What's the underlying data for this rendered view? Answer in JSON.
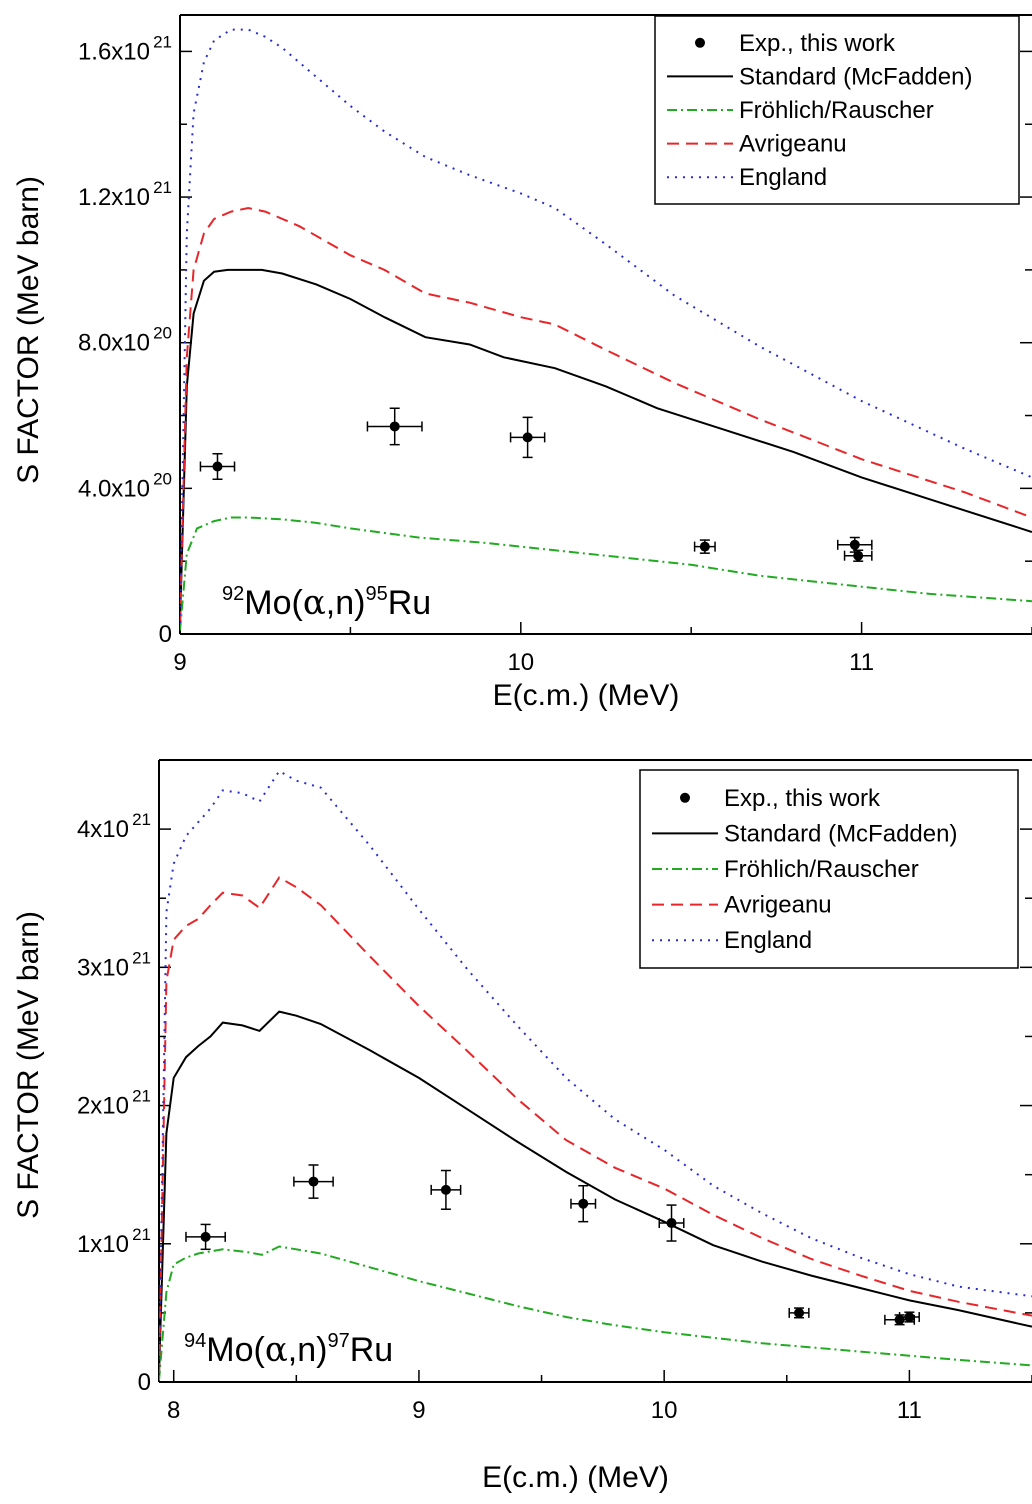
{
  "chart_data": [
    {
      "type": "line",
      "reaction": {
        "a_mass": "92",
        "target": "Mo(",
        "alpha": "α",
        "mid": ",n)",
        "p_mass": "95",
        "product": "Ru"
      },
      "xlabel": "E(c.m.) (MeV)",
      "ylabel": "S FACTOR (MeV barn)",
      "xlim": [
        9.0,
        11.5
      ],
      "ylim": [
        0,
        1.7e+21
      ],
      "x_ticks": [
        {
          "v": 9,
          "label": "9"
        },
        {
          "v": 10,
          "label": "10"
        },
        {
          "v": 11,
          "label": "11"
        }
      ],
      "y_ticks": [
        {
          "v": 0,
          "base": "0",
          "exp": ""
        },
        {
          "v": 4e+20,
          "base": "4.0x10",
          "exp": "20"
        },
        {
          "v": 8e+20,
          "base": "8.0x10",
          "exp": "20"
        },
        {
          "v": 1.2e+21,
          "base": "1.2x10",
          "exp": "21"
        },
        {
          "v": 1.6e+21,
          "base": "1.6x10",
          "exp": "21"
        }
      ],
      "legend": [
        "Exp., this work",
        "Standard (McFadden)",
        "Fröhlich/Rauscher",
        "Avrigeanu",
        "England"
      ],
      "legend_position": "top-right",
      "points": [
        {
          "x": 9.11,
          "y": 4.6e+20,
          "xerr": 0.05,
          "yerr": 3.5e+19
        },
        {
          "x": 9.63,
          "y": 5.7e+20,
          "xerr": 0.08,
          "yerr": 5e+19
        },
        {
          "x": 10.02,
          "y": 5.4e+20,
          "xerr": 0.05,
          "yerr": 5.5e+19
        },
        {
          "x": 10.54,
          "y": 2.4e+20,
          "xerr": 0.03,
          "yerr": 1.8e+19
        },
        {
          "x": 10.98,
          "y": 2.45e+20,
          "xerr": 0.05,
          "yerr": 2e+19
        },
        {
          "x": 10.99,
          "y": 2.15e+20,
          "xerr": 0.04,
          "yerr": 1.5e+19
        }
      ],
      "series": [
        {
          "style": "standard",
          "color": "#000000",
          "dash": "",
          "x": [
            9.0,
            9.02,
            9.04,
            9.07,
            9.1,
            9.14,
            9.19,
            9.24,
            9.3,
            9.4,
            9.5,
            9.6,
            9.72,
            9.85,
            9.95,
            10.1,
            10.25,
            10.4,
            10.6,
            10.8,
            11.0,
            11.2,
            11.5
          ],
          "y": [
            3e+19,
            6.8e+20,
            8.8e+20,
            9.7e+20,
            9.95e+20,
            1e+21,
            1e+21,
            1e+21,
            9.9e+20,
            9.6e+20,
            9.2e+20,
            8.7e+20,
            8.15e+20,
            7.95e+20,
            7.6e+20,
            7.3e+20,
            6.8e+20,
            6.2e+20,
            5.6e+20,
            5e+20,
            4.3e+20,
            3.7e+20,
            2.8e+20
          ]
        },
        {
          "style": "frohlich",
          "color": "#22aa22",
          "dash": "10 4 2 4",
          "x": [
            9.0,
            9.02,
            9.05,
            9.1,
            9.15,
            9.2,
            9.3,
            9.4,
            9.5,
            9.7,
            9.9,
            10.1,
            10.3,
            10.5,
            10.7,
            11.0,
            11.2,
            11.5
          ],
          "y": [
            1e+19,
            2.2e+20,
            2.9e+20,
            3.1e+20,
            3.2e+20,
            3.2e+20,
            3.15e+20,
            3.05e+20,
            2.9e+20,
            2.65e+20,
            2.5e+20,
            2.3e+20,
            2.1e+20,
            1.9e+20,
            1.6e+20,
            1.3e+20,
            1.1e+20,
            9e+19
          ]
        },
        {
          "style": "avrigeanu",
          "color": "#e8262a",
          "dash": "12 7",
          "x": [
            9.0,
            9.02,
            9.04,
            9.07,
            9.1,
            9.15,
            9.2,
            9.25,
            9.35,
            9.5,
            9.6,
            9.72,
            9.85,
            10.0,
            10.1,
            10.25,
            10.45,
            10.7,
            11.0,
            11.3,
            11.5
          ],
          "y": [
            3e+19,
            7.6e+20,
            1e+21,
            1.1e+21,
            1.14e+21,
            1.16e+21,
            1.17e+21,
            1.16e+21,
            1.12e+21,
            1.04e+21,
            1e+21,
            9.35e+20,
            9.1e+20,
            8.7e+20,
            8.5e+20,
            7.8e+20,
            6.9e+20,
            5.9e+20,
            4.8e+20,
            3.9e+20,
            3.2e+20
          ]
        },
        {
          "style": "england",
          "color": "#2b2bd6",
          "dash": "2 6",
          "x": [
            9.0,
            9.02,
            9.04,
            9.07,
            9.1,
            9.15,
            9.2,
            9.25,
            9.3,
            9.4,
            9.5,
            9.6,
            9.72,
            9.85,
            10.0,
            10.1,
            10.25,
            10.45,
            10.7,
            11.0,
            11.3,
            11.5
          ],
          "y": [
            3e+19,
            1.1e+21,
            1.43e+21,
            1.57e+21,
            1.63e+21,
            1.66e+21,
            1.66e+21,
            1.64e+21,
            1.61e+21,
            1.53e+21,
            1.45e+21,
            1.38e+21,
            1.31e+21,
            1.26e+21,
            1.21e+21,
            1.17e+21,
            1.07e+21,
            9.3e+20,
            7.9e+20,
            6.4e+20,
            5.1e+20,
            4.3e+20
          ]
        }
      ]
    },
    {
      "type": "line",
      "reaction": {
        "a_mass": "94",
        "target": "Mo(",
        "alpha": "α",
        "mid": ",n)",
        "p_mass": "97",
        "product": "Ru"
      },
      "xlabel": "E(c.m.) (MeV)",
      "ylabel": "S FACTOR (MeV barn)",
      "xlim": [
        7.94,
        11.5
      ],
      "ylim": [
        0,
        4.5e+21
      ],
      "x_ticks": [
        {
          "v": 8,
          "label": "8"
        },
        {
          "v": 9,
          "label": "9"
        },
        {
          "v": 10,
          "label": "10"
        },
        {
          "v": 11,
          "label": "11"
        }
      ],
      "y_ticks": [
        {
          "v": 0,
          "base": "0",
          "exp": ""
        },
        {
          "v": 1e+21,
          "base": "1x10",
          "exp": "21"
        },
        {
          "v": 2e+21,
          "base": "2x10",
          "exp": "21"
        },
        {
          "v": 3e+21,
          "base": "3x10",
          "exp": "21"
        },
        {
          "v": 4e+21,
          "base": "4x10",
          "exp": "21"
        }
      ],
      "legend": [
        "Exp., this work",
        "Standard (McFadden)",
        "Fröhlich/Rauscher",
        "Avrigeanu",
        "England"
      ],
      "legend_position": "top-right",
      "points": [
        {
          "x": 8.13,
          "y": 1.05e+21,
          "xerr": 0.08,
          "yerr": 9e+19
        },
        {
          "x": 8.57,
          "y": 1.45e+21,
          "xerr": 0.08,
          "yerr": 1.2e+20
        },
        {
          "x": 9.11,
          "y": 1.39e+21,
          "xerr": 0.06,
          "yerr": 1.4e+20
        },
        {
          "x": 9.67,
          "y": 1.29e+21,
          "xerr": 0.05,
          "yerr": 1.3e+20
        },
        {
          "x": 10.03,
          "y": 1.15e+21,
          "xerr": 0.05,
          "yerr": 1.3e+20
        },
        {
          "x": 10.55,
          "y": 5e+20,
          "xerr": 0.04,
          "yerr": 3.5e+19
        },
        {
          "x": 10.96,
          "y": 4.5e+20,
          "xerr": 0.06,
          "yerr": 3.5e+19
        },
        {
          "x": 11.0,
          "y": 4.7e+20,
          "xerr": 0.04,
          "yerr": 3.5e+19
        }
      ],
      "series": [
        {
          "style": "standard",
          "color": "#000000",
          "dash": "",
          "x": [
            7.94,
            7.97,
            8.0,
            8.05,
            8.1,
            8.15,
            8.2,
            8.28,
            8.35,
            8.43,
            8.5,
            8.6,
            8.8,
            9.0,
            9.2,
            9.4,
            9.6,
            9.8,
            10.0,
            10.2,
            10.4,
            10.6,
            10.8,
            11.0,
            11.2,
            11.5
          ],
          "y": [
            5e+19,
            1.8e+21,
            2.2e+21,
            2.35e+21,
            2.43e+21,
            2.5e+21,
            2.6e+21,
            2.58e+21,
            2.54e+21,
            2.68e+21,
            2.65e+21,
            2.59e+21,
            2.4e+21,
            2.2e+21,
            1.97e+21,
            1.74e+21,
            1.52e+21,
            1.32e+21,
            1.16e+21,
            9.9e+20,
            8.7e+20,
            7.7e+20,
            6.8e+20,
            5.9e+20,
            5.2e+20,
            4e+20
          ]
        },
        {
          "style": "frohlich",
          "color": "#22aa22",
          "dash": "10 4 2 4",
          "x": [
            7.94,
            7.97,
            8.0,
            8.05,
            8.1,
            8.2,
            8.3,
            8.36,
            8.43,
            8.5,
            8.6,
            8.8,
            9.0,
            9.2,
            9.4,
            9.6,
            9.8,
            10.0,
            10.2,
            10.4,
            10.6,
            10.8,
            11.0,
            11.2,
            11.5
          ],
          "y": [
            1e+19,
            6.5e+20,
            8.5e+20,
            9e+20,
            9.3e+20,
            9.6e+20,
            9.4e+20,
            9.2e+20,
            9.8e+20,
            9.6e+20,
            9.3e+20,
            8.3e+20,
            7.3e+20,
            6.4e+20,
            5.5e+20,
            4.7e+20,
            4.1e+20,
            3.6e+20,
            3.2e+20,
            2.8e+20,
            2.5e+20,
            2.2e+20,
            1.9e+20,
            1.6e+20,
            1.2e+20
          ]
        },
        {
          "style": "avrigeanu",
          "color": "#e8262a",
          "dash": "12 7",
          "x": [
            7.94,
            7.97,
            8.0,
            8.05,
            8.1,
            8.15,
            8.2,
            8.28,
            8.35,
            8.43,
            8.5,
            8.6,
            8.8,
            9.0,
            9.2,
            9.4,
            9.6,
            9.8,
            10.0,
            10.2,
            10.4,
            10.6,
            10.8,
            11.0,
            11.2,
            11.5
          ],
          "y": [
            5e+19,
            2.9e+21,
            3.2e+21,
            3.3e+21,
            3.35e+21,
            3.45e+21,
            3.54e+21,
            3.52e+21,
            3.43e+21,
            3.65e+21,
            3.58e+21,
            3.45e+21,
            3.08e+21,
            2.72e+21,
            2.39e+21,
            2.05e+21,
            1.75e+21,
            1.55e+21,
            1.4e+21,
            1.21e+21,
            1.04e+21,
            8.9e+20,
            7.7e+20,
            6.6e+20,
            5.8e+20,
            4.8e+20
          ]
        },
        {
          "style": "england",
          "color": "#2b2bd6",
          "dash": "2 6",
          "x": [
            7.94,
            7.97,
            8.0,
            8.05,
            8.1,
            8.15,
            8.2,
            8.28,
            8.35,
            8.43,
            8.5,
            8.6,
            8.8,
            9.0,
            9.2,
            9.4,
            9.6,
            9.8,
            10.0,
            10.2,
            10.4,
            10.6,
            10.8,
            11.0,
            11.2,
            11.5
          ],
          "y": [
            5e+19,
            3.4e+21,
            3.75e+21,
            3.95e+21,
            4.05e+21,
            4.15e+21,
            4.28e+21,
            4.26e+21,
            4.2e+21,
            4.42e+21,
            4.35e+21,
            4.3e+21,
            3.88e+21,
            3.42e+21,
            2.98e+21,
            2.58e+21,
            2.2e+21,
            1.9e+21,
            1.68e+21,
            1.42e+21,
            1.22e+21,
            1.04e+21,
            9e+20,
            7.8e+20,
            6.9e+20,
            6.2e+20
          ]
        }
      ]
    }
  ]
}
